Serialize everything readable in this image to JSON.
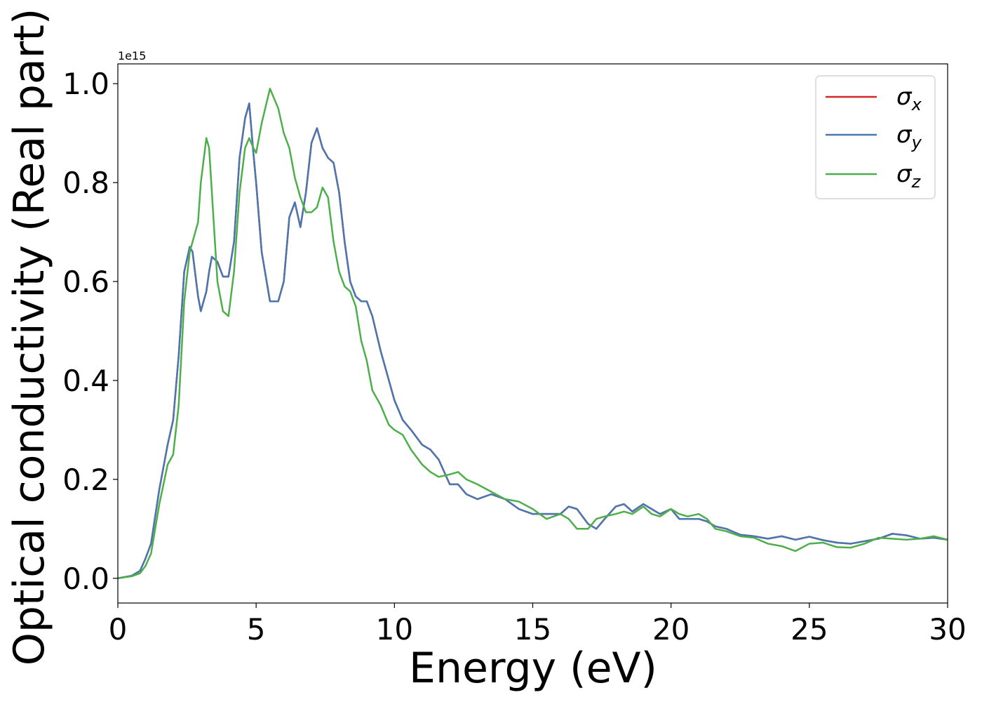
{
  "chart_data": {
    "type": "line",
    "title": "",
    "xlabel": "Energy (eV)",
    "ylabel": "Optical conductivity (Real part)",
    "y_scale_label": "1e15",
    "xlim": [
      0,
      30
    ],
    "ylim": [
      -0.05,
      1.04
    ],
    "xticks": [
      "0",
      "5",
      "10",
      "15",
      "20",
      "25",
      "30"
    ],
    "yticks": [
      "0.0",
      "0.2",
      "0.4",
      "0.6",
      "0.8",
      "1.0"
    ],
    "grid": false,
    "legend_position": "top-right",
    "x": [
      0,
      0.5,
      0.8,
      1.0,
      1.2,
      1.5,
      1.8,
      2.0,
      2.2,
      2.4,
      2.6,
      2.7,
      2.9,
      3.0,
      3.2,
      3.3,
      3.4,
      3.6,
      3.8,
      4.0,
      4.2,
      4.4,
      4.6,
      4.75,
      4.9,
      5.0,
      5.2,
      5.5,
      5.8,
      6.0,
      6.2,
      6.4,
      6.6,
      6.8,
      7.0,
      7.2,
      7.4,
      7.6,
      7.8,
      8.0,
      8.2,
      8.4,
      8.6,
      8.8,
      9.0,
      9.2,
      9.5,
      9.8,
      10.0,
      10.3,
      10.6,
      11.0,
      11.3,
      11.6,
      12.0,
      12.3,
      12.6,
      13.0,
      13.5,
      14.0,
      14.5,
      15.0,
      15.5,
      16.0,
      16.3,
      16.6,
      17.0,
      17.3,
      17.6,
      18.0,
      18.3,
      18.6,
      19.0,
      19.3,
      19.6,
      20.0,
      20.3,
      20.6,
      21.0,
      21.3,
      21.6,
      22.0,
      22.5,
      23.0,
      23.5,
      24.0,
      24.5,
      25.0,
      25.5,
      26.0,
      26.5,
      27.0,
      27.5,
      28.0,
      28.5,
      29.0,
      29.5,
      30.0
    ],
    "series": [
      {
        "name": "σx",
        "color": "#d62728",
        "values": [
          0.0,
          0.005,
          0.015,
          0.04,
          0.07,
          0.18,
          0.27,
          0.32,
          0.45,
          0.62,
          0.67,
          0.66,
          0.57,
          0.54,
          0.58,
          0.62,
          0.65,
          0.64,
          0.61,
          0.61,
          0.68,
          0.85,
          0.93,
          0.96,
          0.86,
          0.8,
          0.66,
          0.56,
          0.56,
          0.6,
          0.73,
          0.76,
          0.71,
          0.78,
          0.88,
          0.91,
          0.87,
          0.85,
          0.84,
          0.78,
          0.68,
          0.6,
          0.57,
          0.56,
          0.56,
          0.53,
          0.46,
          0.4,
          0.36,
          0.32,
          0.3,
          0.27,
          0.26,
          0.24,
          0.19,
          0.19,
          0.17,
          0.16,
          0.17,
          0.16,
          0.14,
          0.13,
          0.13,
          0.13,
          0.145,
          0.14,
          0.11,
          0.1,
          0.12,
          0.145,
          0.15,
          0.135,
          0.15,
          0.14,
          0.13,
          0.14,
          0.12,
          0.12,
          0.12,
          0.115,
          0.105,
          0.1,
          0.088,
          0.085,
          0.08,
          0.085,
          0.078,
          0.084,
          0.077,
          0.072,
          0.07,
          0.075,
          0.08,
          0.09,
          0.087,
          0.08,
          0.082,
          0.078
        ]
      },
      {
        "name": "σy",
        "color": "#4a77b0",
        "values": [
          0.0,
          0.005,
          0.015,
          0.04,
          0.07,
          0.18,
          0.27,
          0.32,
          0.45,
          0.62,
          0.67,
          0.66,
          0.57,
          0.54,
          0.58,
          0.62,
          0.65,
          0.64,
          0.61,
          0.61,
          0.68,
          0.85,
          0.93,
          0.96,
          0.86,
          0.8,
          0.66,
          0.56,
          0.56,
          0.6,
          0.73,
          0.76,
          0.71,
          0.78,
          0.88,
          0.91,
          0.87,
          0.85,
          0.84,
          0.78,
          0.68,
          0.6,
          0.57,
          0.56,
          0.56,
          0.53,
          0.46,
          0.4,
          0.36,
          0.32,
          0.3,
          0.27,
          0.26,
          0.24,
          0.19,
          0.19,
          0.17,
          0.16,
          0.17,
          0.16,
          0.14,
          0.13,
          0.13,
          0.13,
          0.145,
          0.14,
          0.11,
          0.1,
          0.12,
          0.145,
          0.15,
          0.135,
          0.15,
          0.14,
          0.13,
          0.14,
          0.12,
          0.12,
          0.12,
          0.115,
          0.105,
          0.1,
          0.088,
          0.085,
          0.08,
          0.085,
          0.078,
          0.084,
          0.077,
          0.072,
          0.07,
          0.075,
          0.08,
          0.09,
          0.087,
          0.08,
          0.082,
          0.078
        ]
      },
      {
        "name": "σz",
        "color": "#4daf4a",
        "values": [
          0.0,
          0.004,
          0.01,
          0.025,
          0.05,
          0.15,
          0.23,
          0.25,
          0.35,
          0.56,
          0.66,
          0.68,
          0.72,
          0.8,
          0.89,
          0.87,
          0.78,
          0.6,
          0.54,
          0.53,
          0.62,
          0.78,
          0.87,
          0.89,
          0.87,
          0.86,
          0.92,
          0.99,
          0.95,
          0.9,
          0.87,
          0.81,
          0.77,
          0.74,
          0.74,
          0.75,
          0.79,
          0.77,
          0.68,
          0.62,
          0.59,
          0.58,
          0.55,
          0.48,
          0.44,
          0.38,
          0.35,
          0.31,
          0.3,
          0.29,
          0.26,
          0.23,
          0.215,
          0.205,
          0.21,
          0.215,
          0.2,
          0.19,
          0.175,
          0.16,
          0.155,
          0.14,
          0.12,
          0.13,
          0.12,
          0.1,
          0.1,
          0.12,
          0.125,
          0.13,
          0.135,
          0.13,
          0.145,
          0.13,
          0.125,
          0.14,
          0.13,
          0.125,
          0.13,
          0.12,
          0.1,
          0.095,
          0.085,
          0.082,
          0.07,
          0.065,
          0.055,
          0.07,
          0.072,
          0.063,
          0.062,
          0.07,
          0.082,
          0.08,
          0.078,
          0.08,
          0.085,
          0.078
        ]
      }
    ]
  }
}
